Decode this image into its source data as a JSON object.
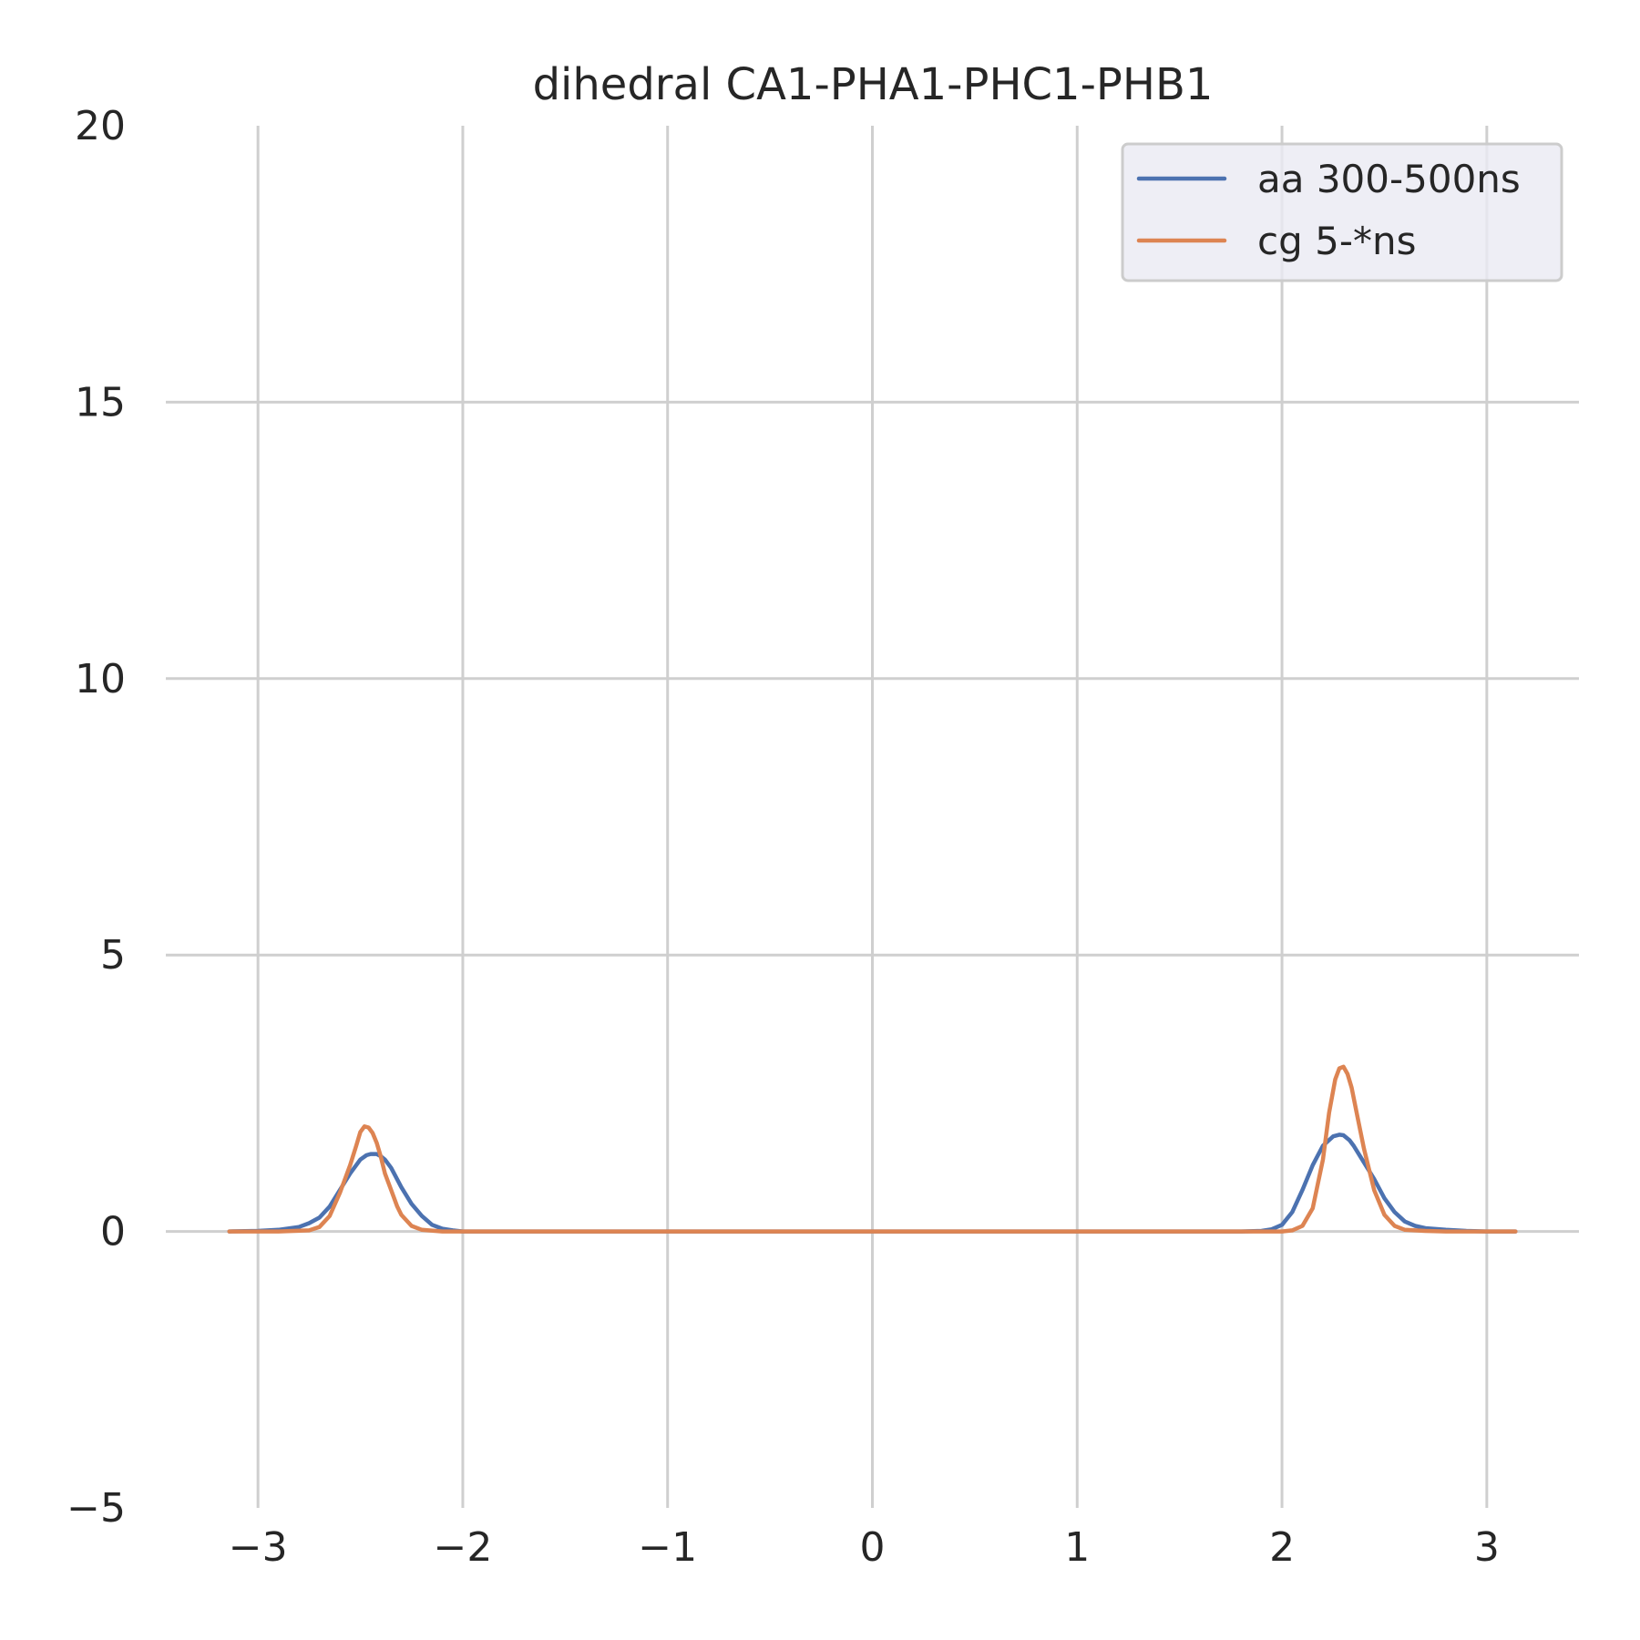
{
  "chart_data": {
    "type": "line",
    "title": "dihedral CA1-PHA1-PHC1-PHB1",
    "xlabel": "",
    "ylabel": "",
    "xlim": [
      -3.45,
      3.45
    ],
    "ylim": [
      -5,
      20
    ],
    "x_ticks": [
      -3,
      -2,
      -1,
      0,
      1,
      2,
      3
    ],
    "x_tick_labels": [
      "−3",
      "−2",
      "−1",
      "0",
      "1",
      "2",
      "3"
    ],
    "y_ticks": [
      -5,
      0,
      5,
      10,
      15,
      20
    ],
    "y_tick_labels": [
      "−5",
      "0",
      "5",
      "10",
      "15",
      "20"
    ],
    "grid": true,
    "legend_position": "top-right",
    "series": [
      {
        "name": "aa 300-500ns",
        "color": "#4c72b0",
        "x": [
          -3.14,
          -3.0,
          -2.9,
          -2.8,
          -2.75,
          -2.7,
          -2.65,
          -2.6,
          -2.55,
          -2.5,
          -2.47,
          -2.45,
          -2.42,
          -2.4,
          -2.38,
          -2.35,
          -2.3,
          -2.25,
          -2.2,
          -2.15,
          -2.1,
          -2.05,
          -2.0,
          -1.9,
          -1.5,
          -1.0,
          0.0,
          1.0,
          1.8,
          1.9,
          1.95,
          2.0,
          2.05,
          2.1,
          2.15,
          2.2,
          2.25,
          2.28,
          2.3,
          2.33,
          2.35,
          2.4,
          2.45,
          2.5,
          2.55,
          2.6,
          2.65,
          2.7,
          2.8,
          2.9,
          3.0,
          3.14
        ],
        "y": [
          0.0,
          0.01,
          0.03,
          0.08,
          0.15,
          0.25,
          0.45,
          0.75,
          1.05,
          1.3,
          1.38,
          1.4,
          1.4,
          1.36,
          1.3,
          1.15,
          0.8,
          0.5,
          0.28,
          0.12,
          0.05,
          0.02,
          0.0,
          0.0,
          0.0,
          0.0,
          0.0,
          0.0,
          0.0,
          0.01,
          0.04,
          0.12,
          0.35,
          0.75,
          1.2,
          1.55,
          1.72,
          1.75,
          1.74,
          1.65,
          1.55,
          1.25,
          0.95,
          0.6,
          0.35,
          0.18,
          0.1,
          0.06,
          0.03,
          0.01,
          0.0,
          0.0
        ]
      },
      {
        "name": "cg 5-*ns",
        "color": "#dd8452",
        "x": [
          -3.14,
          -2.9,
          -2.75,
          -2.7,
          -2.65,
          -2.6,
          -2.55,
          -2.52,
          -2.5,
          -2.48,
          -2.46,
          -2.44,
          -2.42,
          -2.4,
          -2.38,
          -2.35,
          -2.32,
          -2.3,
          -2.25,
          -2.2,
          -2.1,
          -2.0,
          -1.0,
          0.0,
          1.0,
          1.9,
          2.0,
          2.05,
          2.1,
          2.15,
          2.2,
          2.23,
          2.26,
          2.28,
          2.3,
          2.32,
          2.34,
          2.37,
          2.4,
          2.45,
          2.5,
          2.55,
          2.6,
          2.7,
          2.8,
          3.0,
          3.14
        ],
        "y": [
          0.0,
          0.0,
          0.02,
          0.08,
          0.28,
          0.7,
          1.2,
          1.55,
          1.8,
          1.9,
          1.88,
          1.78,
          1.6,
          1.35,
          1.05,
          0.75,
          0.45,
          0.3,
          0.1,
          0.03,
          0.0,
          0.0,
          0.0,
          0.0,
          0.0,
          0.0,
          0.0,
          0.02,
          0.1,
          0.42,
          1.3,
          2.15,
          2.75,
          2.95,
          2.98,
          2.85,
          2.6,
          2.05,
          1.5,
          0.75,
          0.3,
          0.1,
          0.03,
          0.01,
          0.0,
          0.0,
          0.0
        ]
      }
    ]
  }
}
